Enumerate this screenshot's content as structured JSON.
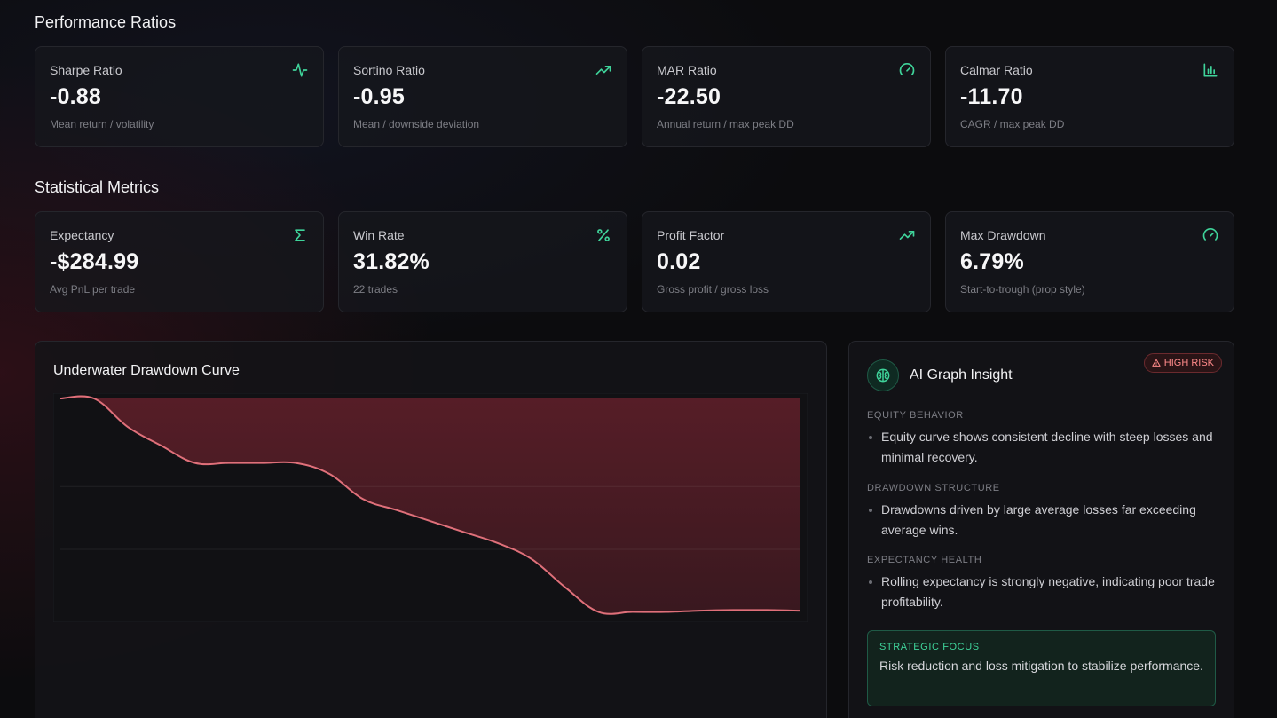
{
  "performance": {
    "title": "Performance Ratios",
    "cards": [
      {
        "label": "Sharpe Ratio",
        "value": "-0.88",
        "sub": "Mean return / volatility",
        "icon": "activity-icon"
      },
      {
        "label": "Sortino Ratio",
        "value": "-0.95",
        "sub": "Mean / downside deviation",
        "icon": "trending-up-icon"
      },
      {
        "label": "MAR Ratio",
        "value": "-22.50",
        "sub": "Annual return / max peak DD",
        "icon": "gauge-icon"
      },
      {
        "label": "Calmar Ratio",
        "value": "-11.70",
        "sub": "CAGR / max peak DD",
        "icon": "bar-chart-icon"
      }
    ]
  },
  "statistical": {
    "title": "Statistical Metrics",
    "cards": [
      {
        "label": "Expectancy",
        "value": "-$284.99",
        "sub": "Avg PnL per trade",
        "icon": "sigma-icon"
      },
      {
        "label": "Win Rate",
        "value": "31.82%",
        "sub": "22 trades",
        "icon": "percent-icon"
      },
      {
        "label": "Profit Factor",
        "value": "0.02",
        "sub": "Gross profit / gross loss",
        "icon": "trending-up-icon"
      },
      {
        "label": "Max Drawdown",
        "value": "6.79%",
        "sub": "Start-to-trough (prop style)",
        "icon": "gauge-icon"
      }
    ]
  },
  "accent_color": "#3fd39a",
  "chart": {
    "title": "Underwater Drawdown Curve"
  },
  "chart_data": {
    "type": "area",
    "title": "Underwater Drawdown Curve",
    "x": [
      0,
      1,
      2,
      3,
      4,
      5,
      6,
      7,
      8,
      9,
      10,
      11,
      12,
      13,
      14,
      15,
      16,
      17,
      18,
      19,
      20,
      21,
      22
    ],
    "values": [
      0,
      0,
      -0.9,
      -1.5,
      -2.05,
      -2.05,
      -2.05,
      -2.05,
      -2.4,
      -3.2,
      -3.55,
      -3.9,
      -4.25,
      -4.6,
      -5.1,
      -6.0,
      -6.79,
      -6.79,
      -6.79,
      -6.75,
      -6.73,
      -6.73,
      -6.75
    ],
    "ylim": [
      -7.0,
      0
    ],
    "grid": true,
    "line_color": "#e0707a",
    "fill_color": "#5a1e28"
  },
  "insight": {
    "title": "AI Graph Insight",
    "badge": "HIGH RISK",
    "sections": [
      {
        "heading": "EQUITY BEHAVIOR",
        "text": "Equity curve shows consistent decline with steep losses and minimal recovery."
      },
      {
        "heading": "DRAWDOWN STRUCTURE",
        "text": "Drawdowns driven by large average losses far exceeding average wins."
      },
      {
        "heading": "EXPECTANCY HEALTH",
        "text": "Rolling expectancy is strongly negative, indicating poor trade profitability."
      }
    ],
    "focus_label": "STRATEGIC FOCUS",
    "focus_text": "Risk reduction and loss mitigation to stabilize performance."
  }
}
